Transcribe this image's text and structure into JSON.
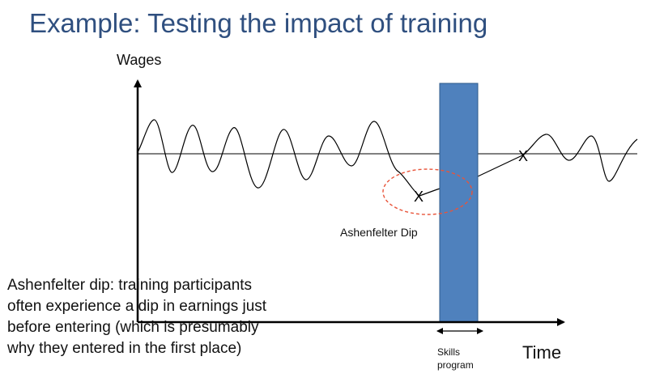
{
  "slide": {
    "title": "Example: Testing the impact of training"
  },
  "diagram": {
    "y_axis_label": "Wages",
    "x_axis_label": "Time",
    "dip_label": "Ashenfelter Dip",
    "program_bar": {
      "label_line1": "Skills",
      "label_line2": "program",
      "color": "#4F81BD"
    },
    "dip_ellipse_color": "#E8543A",
    "markers": [
      "X",
      "X"
    ]
  },
  "caption": {
    "lines": [
      "Ashenfelter dip: training participants",
      "often experience a dip in earnings just",
      "before entering (which is presumably",
      "why they entered in the first place)"
    ]
  }
}
